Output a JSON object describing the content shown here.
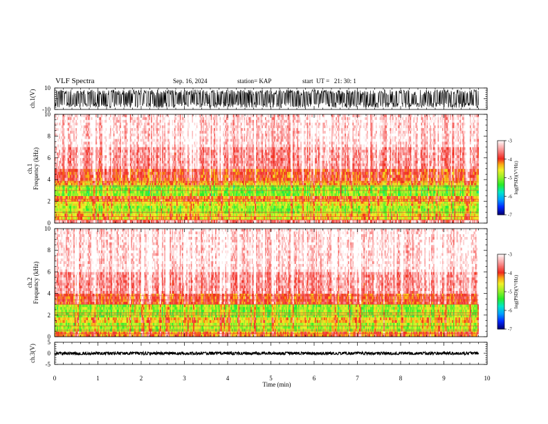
{
  "header": {
    "title": "VLF Spectra",
    "date": "Sep. 16, 2024",
    "station": "station= KAP",
    "start_ut": "start  UT =   21: 30: 1"
  },
  "chart_data": [
    {
      "type": "line",
      "panel": "ch1-waveform",
      "ylabel": "ch.1(V)",
      "ylim": [
        -10,
        10
      ],
      "yticks": [
        "10",
        "-10"
      ],
      "xlim": [
        0,
        10
      ],
      "note_values": "dense waveform, amplitude roughly -10 to 10 V throughout 0–9.8 min"
    },
    {
      "type": "heatmap",
      "panel": "ch1-spectrogram",
      "ylabel": "ch.1\nFrequency (kHz)",
      "ylabel_line1": "ch.1",
      "ylabel_line2": "Frequency (kHz)",
      "ylim": [
        0,
        10
      ],
      "yticks": [
        "0",
        "2",
        "4",
        "6",
        "8",
        "10"
      ],
      "xlim": [
        0,
        10
      ],
      "data_end_min": 9.8,
      "bands": [
        {
          "from": 0.0,
          "to": 0.3,
          "level": -3.6
        },
        {
          "from": 0.3,
          "to": 0.9,
          "level": -4.6
        },
        {
          "from": 0.9,
          "to": 1.6,
          "level": -5.0
        },
        {
          "from": 1.6,
          "to": 2.0,
          "level": -4.7
        },
        {
          "from": 2.0,
          "to": 2.5,
          "level": -4.3
        },
        {
          "from": 2.5,
          "to": 3.5,
          "level": -5.1
        },
        {
          "from": 3.5,
          "to": 3.9,
          "level": -4.4
        },
        {
          "from": 3.9,
          "to": 5.0,
          "level": -4.0
        },
        {
          "from": 5.0,
          "to": 7.0,
          "level": -3.5
        },
        {
          "from": 7.0,
          "to": 10.0,
          "level": -3.2
        }
      ]
    },
    {
      "type": "heatmap",
      "panel": "ch2-spectrogram",
      "ylabel_line1": "ch.2",
      "ylabel_line2": "Frequency (kHz)",
      "ylim": [
        0,
        10
      ],
      "yticks": [
        "0",
        "2",
        "4",
        "6",
        "8",
        "10"
      ],
      "xlim": [
        0,
        10
      ],
      "data_end_min": 9.8,
      "bands": [
        {
          "from": 0.0,
          "to": 0.5,
          "level": -4.2
        },
        {
          "from": 0.5,
          "to": 1.3,
          "level": -4.9
        },
        {
          "from": 1.3,
          "to": 1.8,
          "level": -4.5
        },
        {
          "from": 1.8,
          "to": 3.0,
          "level": -5.0
        },
        {
          "from": 3.0,
          "to": 4.0,
          "level": -4.0
        },
        {
          "from": 4.0,
          "to": 6.0,
          "level": -3.5
        },
        {
          "from": 6.0,
          "to": 10.0,
          "level": -3.15
        }
      ]
    },
    {
      "type": "line",
      "panel": "ch3-waveform",
      "ylabel": "ch.3(V)",
      "ylim": [
        -5,
        5
      ],
      "yticks": [
        "5",
        "0",
        "-5"
      ],
      "xlim": [
        0,
        10
      ],
      "note_values": "narrow band around 0 V, approx -0.5 to 0.5 V"
    }
  ],
  "colorbar": {
    "label": "log(PSD)(V²/Hz)",
    "range": [
      -7,
      -3
    ],
    "ticks": [
      "-3",
      "-4",
      "-5",
      "-6",
      "-7"
    ]
  },
  "xaxis": {
    "label": "Time (min)",
    "ticks": [
      "0",
      "1",
      "2",
      "3",
      "4",
      "5",
      "6",
      "7",
      "8",
      "9",
      "10"
    ]
  }
}
